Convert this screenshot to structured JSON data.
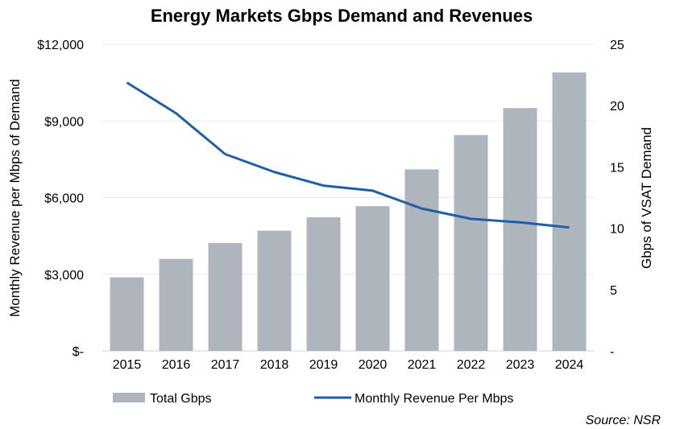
{
  "chart_data": {
    "type": "bar",
    "title": "Energy Markets Gbps Demand and Revenues",
    "categories": [
      "2015",
      "2016",
      "2017",
      "2018",
      "2019",
      "2020",
      "2021",
      "2022",
      "2023",
      "2024"
    ],
    "series": [
      {
        "name": "Total Gbps",
        "type": "bar",
        "axis": "right",
        "color": "#afb5bd",
        "values": [
          6.0,
          7.5,
          8.8,
          9.8,
          10.9,
          11.8,
          14.8,
          17.6,
          19.8,
          22.7
        ]
      },
      {
        "name": "Monthly Revenue Per Mbps",
        "type": "line",
        "axis": "left",
        "color": "#1f5fa6",
        "values": [
          10500,
          9300,
          7700,
          7000,
          6470,
          6270,
          5570,
          5170,
          5030,
          4830
        ]
      }
    ],
    "ylabel": "Monthly Revenue per Mbps of Demand",
    "ylim": [
      0,
      12000
    ],
    "yticks": [
      "$-",
      "$3,000",
      "$6,000",
      "$9,000",
      "$12,000"
    ],
    "y2label": "Gbps of VSAT Demand",
    "y2lim": [
      0,
      25
    ],
    "y2ticks": [
      "-",
      "5",
      "10",
      "15",
      "20",
      "25"
    ],
    "grid": true,
    "legend": "bottom",
    "source": "Source: NSR"
  }
}
